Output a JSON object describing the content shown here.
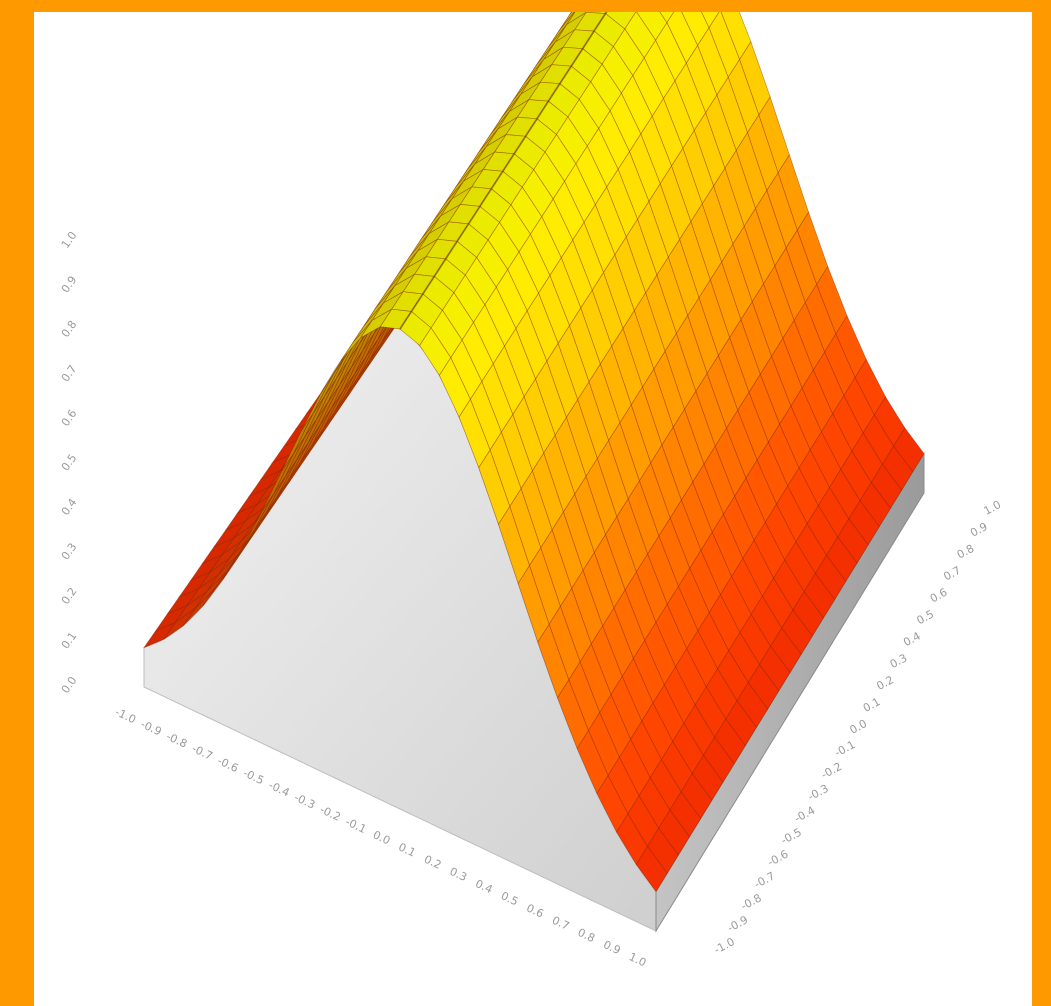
{
  "colors": {
    "frame": "#ff9900",
    "background": "#ffffff",
    "surface_low": "#ff1a00",
    "surface_high": "#ffff00",
    "wall_left": "#e6e6e6",
    "wall_right": "#a8a8a8",
    "mesh": "#7a1a00"
  },
  "chart_data": {
    "type": "surface",
    "grid": true,
    "legend": "none",
    "z_range": [
      0,
      1
    ],
    "x_range": [
      -1,
      1
    ],
    "y_range": [
      -1,
      1
    ],
    "surface_function": "z = exp(-2.5 * u^2), u along the ridge axis",
    "samples": [
      {
        "u": -1.0,
        "z": 0.08
      },
      {
        "u": -0.5,
        "z": 0.54
      },
      {
        "u": 0.0,
        "z": 1.0
      },
      {
        "u": 0.5,
        "z": 0.54
      },
      {
        "u": 1.0,
        "z": 0.08
      }
    ]
  }
}
